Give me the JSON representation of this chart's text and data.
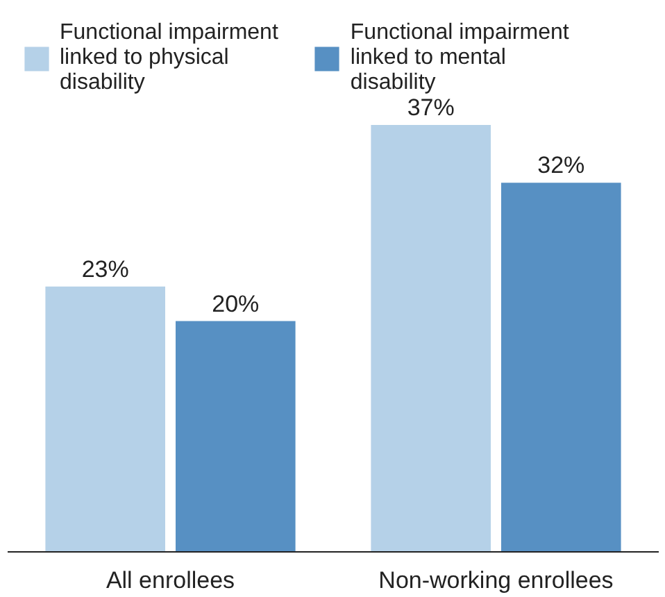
{
  "chart_data": {
    "type": "bar",
    "categories": [
      "All enrollees",
      "Non-working enrollees"
    ],
    "series": [
      {
        "name": "Functional impairment linked to physical disability",
        "color": "#b5d1e8",
        "values": [
          23,
          37
        ],
        "value_labels": [
          "23%",
          "37%"
        ]
      },
      {
        "name": "Functional impairment linked to mental disability",
        "color": "#5790c3",
        "values": [
          20,
          32
        ],
        "value_labels": [
          "20%",
          "32%"
        ]
      }
    ],
    "tick_labels": "x",
    "grid": false,
    "legend": "top"
  }
}
